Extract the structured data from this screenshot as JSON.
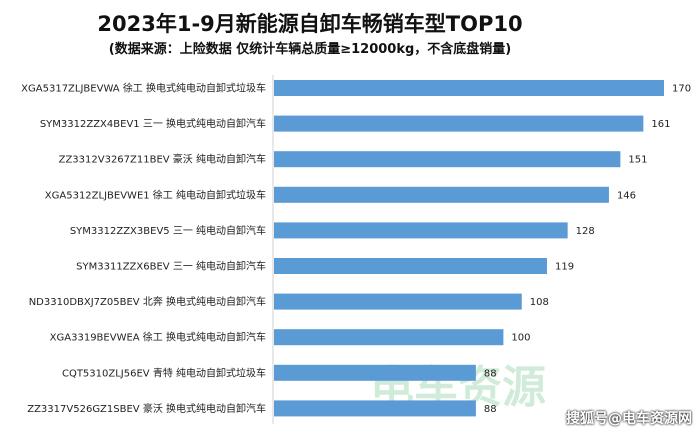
{
  "chart_data": {
    "type": "bar",
    "orientation": "horizontal",
    "title": "2023年1-9月新能源自卸车畅销车型TOP10",
    "subtitle": "(数据来源：上险数据 仅统计车辆总质量≥12000kg，不含底盘销量)",
    "categories": [
      "XGA5317ZLJBEVWA 徐工 换电式纯电动自卸式垃圾车",
      "SYM3312ZZX4BEV1 三一 换电式纯电动自卸汽车",
      "ZZ3312V3267Z11BEV 豪沃 纯电动自卸汽车",
      "XGA5312ZLJBEVWE1 徐工 纯电动自卸式垃圾车",
      "SYM3312ZZX3BEV5 三一 纯电动自卸汽车",
      "SYM3311ZZX6BEV 三一 纯电动自卸汽车",
      "ND3310DBXJ7Z05BEV 北奔 换电式纯电动自卸汽车",
      "XGA3319BEVWEA 徐工 换电式纯电动自卸汽车",
      "CQT5310ZLJ56EV 青特 纯电动自卸式垃圾车",
      "ZZ3317V526GZ1SBEV 豪沃 换电式纯电动自卸汽车"
    ],
    "values": [
      170,
      161,
      151,
      146,
      128,
      119,
      108,
      100,
      88,
      88
    ],
    "xlim": [
      0,
      170
    ],
    "grid": false,
    "legend": "none",
    "bar_color": "#5b9bd5"
  },
  "watermark": {
    "logo_text": "电车资源",
    "credit": "搜狐号@电车资源网"
  }
}
